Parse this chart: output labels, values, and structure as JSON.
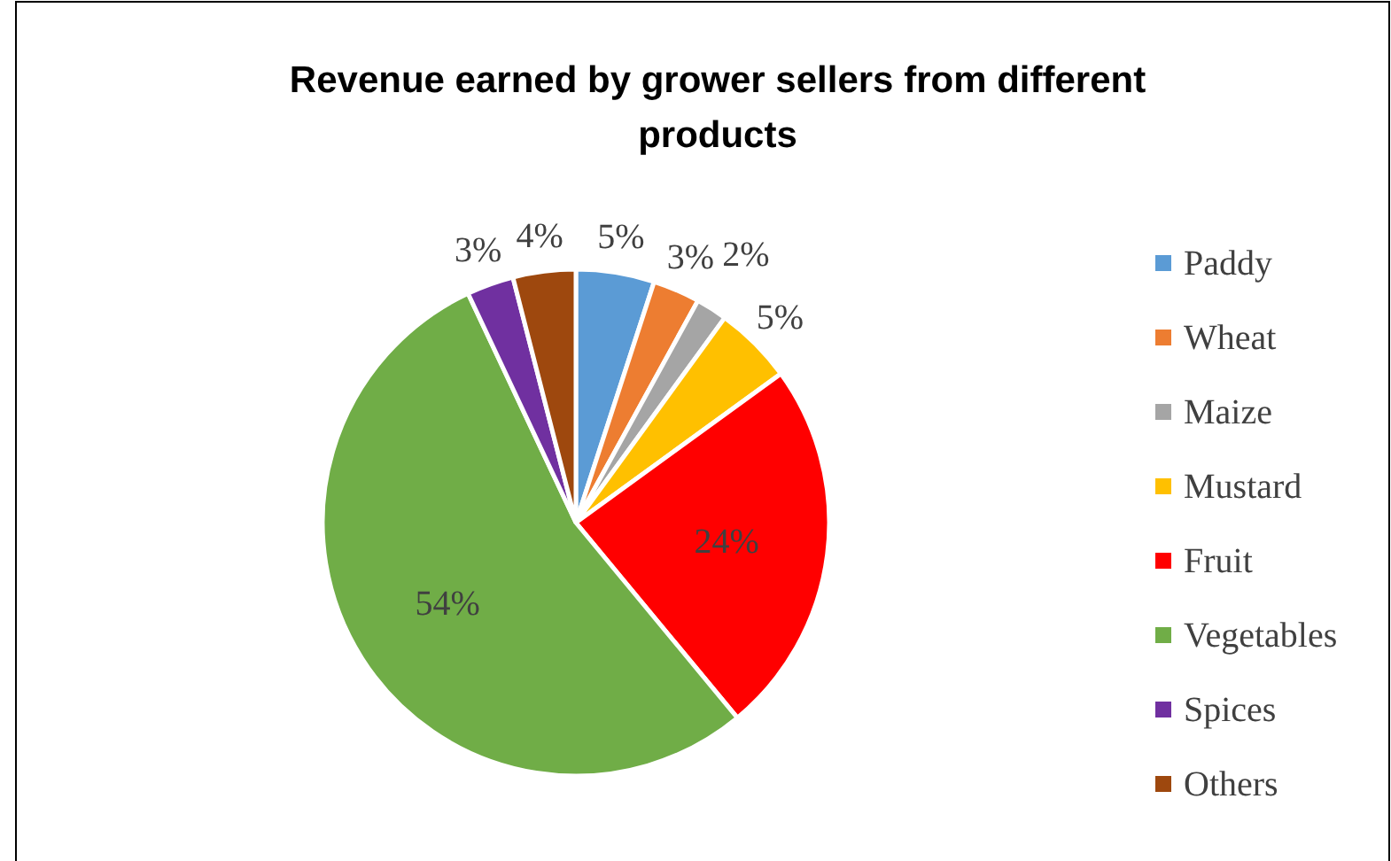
{
  "chart_data": {
    "type": "pie",
    "title": "Revenue earned by grower sellers from different products",
    "categories": [
      "Paddy",
      "Wheat",
      "Maize",
      "Mustard",
      "Fruit",
      "Vegetables",
      "Spices",
      "Others"
    ],
    "values": [
      5,
      3,
      2,
      5,
      24,
      54,
      3,
      4
    ],
    "colors": [
      "#5b9bd5",
      "#ed7d31",
      "#a5a5a5",
      "#ffc000",
      "#ff0000",
      "#70ad47",
      "#7030a0",
      "#9e480e"
    ],
    "value_labels": [
      "5%",
      "3%",
      "2%",
      "5%",
      "24%",
      "54%",
      "3%",
      "4%"
    ],
    "legend": "right"
  }
}
